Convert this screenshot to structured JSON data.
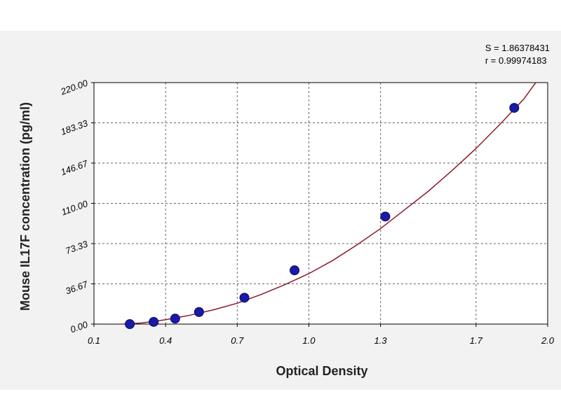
{
  "stats": {
    "s_line": "S = 1.86378431",
    "r_line": "r = 0.99974183"
  },
  "colors": {
    "curve": "#8b1a2a",
    "point": "#1a1aa8",
    "grid": "#666666",
    "panel": "#f2f2f2",
    "plot_bg": "#ffffff"
  },
  "chart_data": {
    "type": "scatter",
    "title": "",
    "xlabel": "Optical Density",
    "ylabel": "Mouse IL17F concentration (pg/ml)",
    "xlim": [
      0.1,
      2.0
    ],
    "ylim": [
      0,
      220
    ],
    "x_ticks": [
      0.1,
      0.4,
      0.7,
      1.0,
      1.3,
      1.7,
      2.0
    ],
    "x_tick_labels": [
      "0.1",
      "0.4",
      "0.7",
      "1.0",
      "1.3",
      "1.7",
      "2.0"
    ],
    "y_ticks": [
      0,
      36.67,
      73.33,
      110,
      146.67,
      183.33,
      220
    ],
    "y_tick_labels": [
      "0.00",
      "36.67",
      "73.33",
      "110.00",
      "146.67",
      "183.33",
      "220.00"
    ],
    "grid": true,
    "series": [
      {
        "kind": "points",
        "x": [
          0.25,
          0.35,
          0.44,
          0.54,
          0.73,
          0.94,
          1.32,
          1.86
        ],
        "y": [
          0,
          2,
          5,
          11,
          24,
          49,
          98,
          197
        ]
      },
      {
        "kind": "fit-curve",
        "x": [
          0.22,
          0.3,
          0.4,
          0.5,
          0.6,
          0.7,
          0.8,
          0.9,
          1.0,
          1.1,
          1.2,
          1.3,
          1.4,
          1.5,
          1.6,
          1.7,
          1.8,
          1.9,
          1.95
        ],
        "y": [
          0,
          1,
          4,
          8,
          13,
          19,
          27,
          36,
          46,
          58,
          72,
          87,
          104,
          121,
          140,
          160,
          182,
          205,
          220
        ]
      }
    ]
  }
}
